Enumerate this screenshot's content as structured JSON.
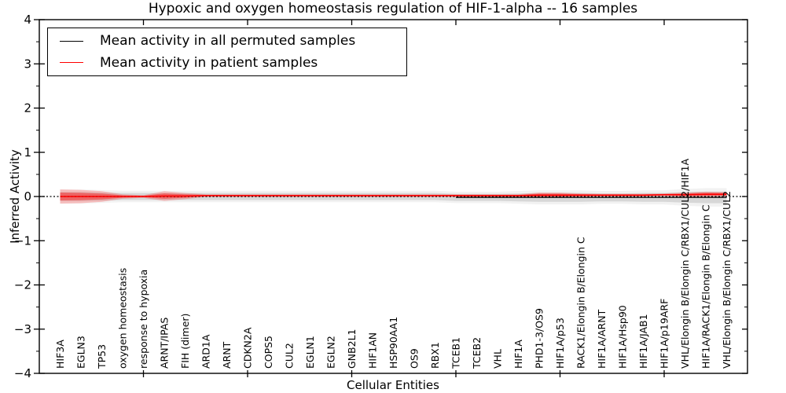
{
  "figure": {
    "background": "#ffffff"
  },
  "legend": {
    "position": "upper left",
    "items": [
      {
        "label": "Mean activity in all permuted samples",
        "color": "#000000"
      },
      {
        "label": "Mean activity in patient samples",
        "color": "#ff0000"
      }
    ]
  },
  "chart_data": {
    "type": "line",
    "title": "Hypoxic and oxygen homeostasis regulation of HIF-1-alpha -- 16 samples",
    "xlabel": "Cellular Entities",
    "ylabel": "Inferred Activity",
    "ylim": [
      -4,
      4
    ],
    "yticks": {
      "values": [
        4,
        3,
        2,
        1,
        0,
        -1,
        -2,
        -3,
        -4
      ],
      "labels": [
        "4",
        "3",
        "2",
        "1",
        "0",
        "−1",
        "−2",
        "−3",
        "−4"
      ]
    },
    "ytick_minor_step": 0.5,
    "xtick_major_indices": [
      4,
      9,
      14,
      19,
      24,
      29
    ],
    "grid": false,
    "legend_position": "upper left",
    "categories": [
      "HIF3A",
      "EGLN3",
      "TP53",
      "oxygen homeostasis",
      "response to hypoxia",
      "ARNT/IPAS",
      "FIH (dimer)",
      "ARD1A",
      "ARNT",
      "CDKN2A",
      "COPS5",
      "CUL2",
      "EGLN1",
      "EGLN2",
      "GNB2L1",
      "HIF1AN",
      "HSP90AA1",
      "OS9",
      "RBX1",
      "TCEB1",
      "TCEB2",
      "VHL",
      "HIF1A",
      "PHD1-3/OS9",
      "HIF1A/p53",
      "RACK1/Elongin B/Elongin C",
      "HIF1A/ARNT",
      "HIF1A/Hsp90",
      "HIF1A/JAB1",
      "HIF1A/p19ARF",
      "VHL/Elongin B/Elongin C/RBX1/CUL2/HIF1A",
      "HIF1A/RACK1/Elongin B/Elongin C",
      "VHL/Elongin B/Elongin C/RBX1/CUL2"
    ],
    "series": [
      {
        "name": "Mean activity in all permuted samples",
        "color": "#000000",
        "line_style": "solid",
        "values": [
          0,
          0,
          0,
          0,
          0,
          0,
          0,
          0,
          0,
          0,
          0,
          0,
          0,
          0,
          0,
          0,
          0,
          0,
          0,
          -0.02,
          -0.02,
          -0.02,
          -0.02,
          -0.02,
          -0.02,
          -0.02,
          -0.02,
          -0.02,
          -0.02,
          -0.02,
          -0.02,
          -0.02,
          -0.02
        ],
        "band_halfwidth": [
          0.1,
          0.1,
          0.09,
          0.08,
          0.08,
          0.08,
          0.08,
          0.08,
          0.08,
          0.08,
          0.08,
          0.08,
          0.08,
          0.08,
          0.08,
          0.08,
          0.08,
          0.08,
          0.08,
          0.08,
          0.08,
          0.08,
          0.09,
          0.1,
          0.1,
          0.1,
          0.09,
          0.09,
          0.1,
          0.1,
          0.12,
          0.13,
          0.13
        ]
      },
      {
        "name": "Mean activity in patient samples",
        "color": "#ff0000",
        "line_style": "solid",
        "values": [
          0,
          0,
          0,
          0,
          0,
          0.01,
          0.01,
          0.02,
          0.02,
          0.02,
          0.02,
          0.02,
          0.02,
          0.02,
          0.02,
          0.02,
          0.02,
          0.02,
          0.02,
          0.02,
          0.02,
          0.02,
          0.02,
          0.03,
          0.03,
          0.03,
          0.03,
          0.03,
          0.03,
          0.04,
          0.04,
          0.05,
          0.05
        ],
        "band_halfwidth": [
          0.16,
          0.15,
          0.12,
          0.05,
          0.03,
          0.11,
          0.07,
          0.03,
          0.03,
          0.03,
          0.03,
          0.03,
          0.03,
          0.03,
          0.03,
          0.03,
          0.03,
          0.03,
          0.03,
          0.03,
          0.03,
          0.03,
          0.03,
          0.06,
          0.06,
          0.04,
          0.03,
          0.03,
          0.03,
          0.03,
          0.05,
          0.06,
          0.05
        ]
      }
    ],
    "zero_line": {
      "y": 0,
      "style": "dashed",
      "color": "#000000"
    }
  }
}
